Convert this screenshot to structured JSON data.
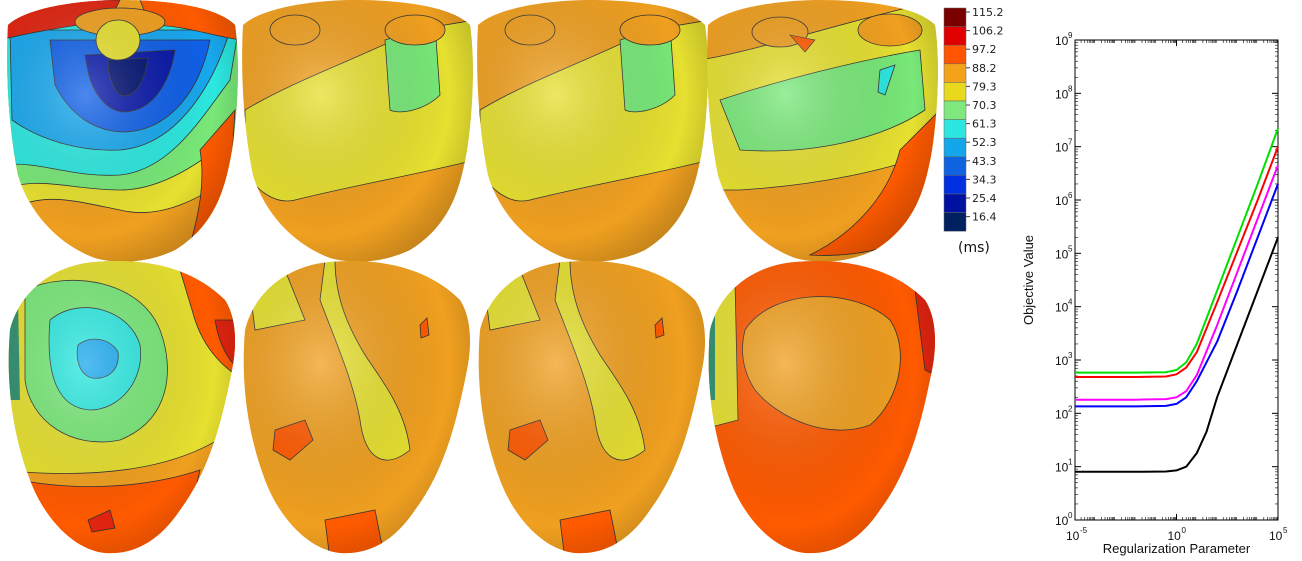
{
  "colorbar": {
    "labels": [
      "115.2",
      "106.2",
      "97.2",
      "88.2",
      "79.3",
      "70.3",
      "61.3",
      "52.3",
      "43.3",
      "34.3",
      "25.4",
      "16.4"
    ],
    "colors": [
      "#7a0000",
      "#e00000",
      "#ff5500",
      "#f3a21a",
      "#e8d81e",
      "#7ee87e",
      "#2ee6e0",
      "#13a6ea",
      "#0f62e0",
      "#0030e0",
      "#0010a0",
      "#002060"
    ],
    "unit": "(ms)"
  },
  "heart_panels": {
    "count": 8,
    "rows": 2,
    "cols": 4,
    "palette": {
      "red": "#e02410",
      "orange": "#ff5a00",
      "amber": "#f0a020",
      "yellow": "#e6e030",
      "green": "#78e878",
      "cyan": "#2ce8e0",
      "sky": "#18a8ee",
      "blue": "#1060e8",
      "navy": "#0818a8"
    }
  },
  "chart_data": {
    "type": "line",
    "xlabel": "Regularization Parameter",
    "ylabel": "Objective Value",
    "xscale": "log",
    "yscale": "log",
    "xlim": [
      1e-05,
      100000
    ],
    "ylim": [
      1,
      1000000000
    ],
    "x_ticks": [
      {
        "base": "10",
        "exp": "-5",
        "value": 1e-05
      },
      {
        "base": "10",
        "exp": "0",
        "value": 1
      },
      {
        "base": "10",
        "exp": "5",
        "value": 100000
      }
    ],
    "y_ticks": [
      {
        "base": "10",
        "exp": "0",
        "value": 1
      },
      {
        "base": "10",
        "exp": "1",
        "value": 10
      },
      {
        "base": "10",
        "exp": "2",
        "value": 100
      },
      {
        "base": "10",
        "exp": "3",
        "value": 1000
      },
      {
        "base": "10",
        "exp": "4",
        "value": 10000
      },
      {
        "base": "10",
        "exp": "5",
        "value": 100000
      },
      {
        "base": "10",
        "exp": "6",
        "value": 1000000
      },
      {
        "base": "10",
        "exp": "7",
        "value": 10000000
      },
      {
        "base": "10",
        "exp": "8",
        "value": 100000000
      },
      {
        "base": "10",
        "exp": "9",
        "value": 1000000000
      }
    ],
    "grid": false,
    "legend": "none",
    "series": [
      {
        "color": "#00e000",
        "x": [
          1e-05,
          0.01,
          0.3,
          1,
          3,
          10,
          100,
          1000,
          10000,
          100000
        ],
        "y": [
          580,
          580,
          590,
          650,
          900,
          2000,
          20000,
          200000,
          2000000,
          22000000
        ]
      },
      {
        "color": "#ff0000",
        "x": [
          1e-05,
          0.01,
          0.3,
          1,
          3,
          10,
          100,
          1000,
          10000,
          100000
        ],
        "y": [
          480,
          480,
          490,
          540,
          720,
          1400,
          12000,
          110000,
          1000000,
          10000000
        ]
      },
      {
        "color": "#ff00ff",
        "x": [
          1e-05,
          0.01,
          0.3,
          1,
          3,
          10,
          100,
          1000,
          10000,
          100000
        ],
        "y": [
          180,
          180,
          185,
          200,
          260,
          520,
          4500,
          45000,
          450000,
          4500000
        ]
      },
      {
        "color": "#0000ff",
        "x": [
          1e-05,
          0.01,
          0.3,
          1,
          3,
          10,
          100,
          1000,
          10000,
          100000
        ],
        "y": [
          135,
          135,
          138,
          150,
          200,
          400,
          2200,
          20000,
          200000,
          2000000
        ]
      },
      {
        "color": "#000000",
        "x": [
          1e-05,
          0.01,
          0.3,
          1,
          3,
          10,
          30,
          100,
          1000,
          10000,
          100000
        ],
        "y": [
          8,
          8,
          8.1,
          8.5,
          10,
          18,
          45,
          200,
          2000,
          20000,
          200000
        ]
      }
    ]
  }
}
